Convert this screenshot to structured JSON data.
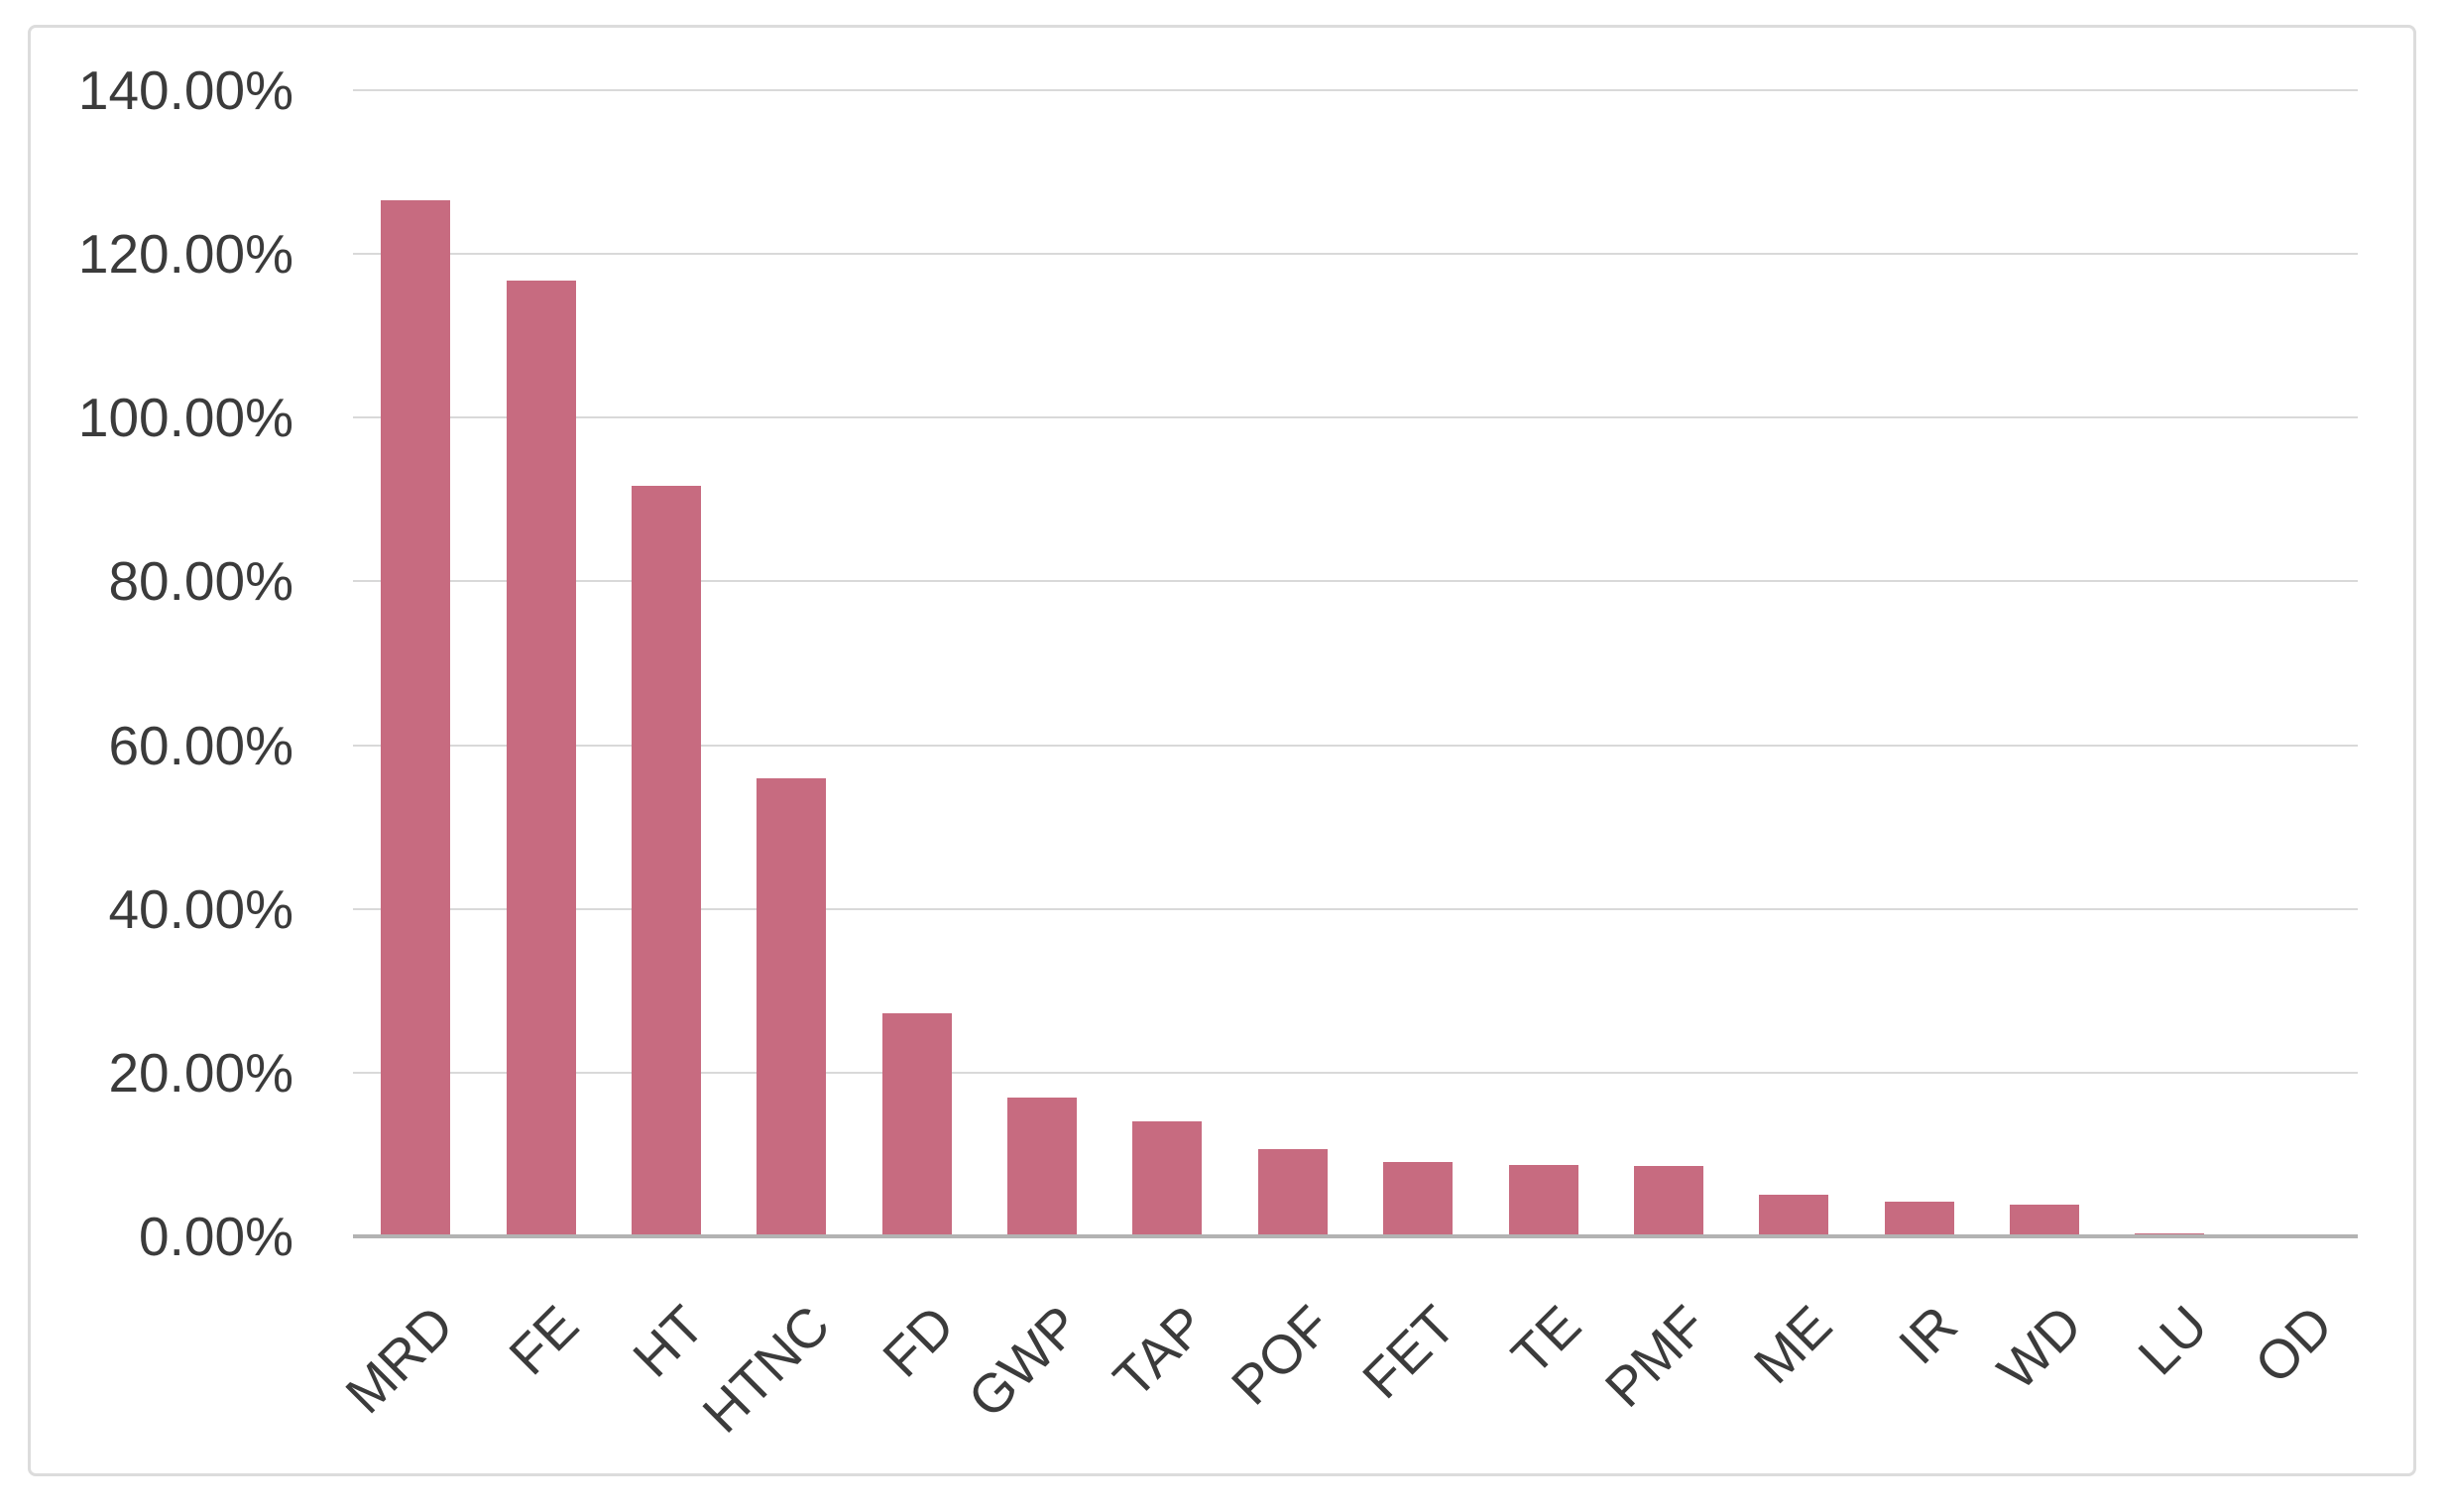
{
  "chart_data": {
    "type": "bar",
    "title": "",
    "xlabel": "",
    "ylabel": "",
    "legend": "none",
    "grid": "horizontal",
    "unit": "%",
    "categories": [
      "MRD",
      "FE",
      "HT",
      "HTNC",
      "FD",
      "GWP",
      "TAP",
      "POF",
      "FET",
      "TE",
      "PMF",
      "ME",
      "IR",
      "WD",
      "LU",
      "OD"
    ],
    "values": [
      126.6,
      116.8,
      91.7,
      56.0,
      27.2,
      16.9,
      14.0,
      10.6,
      9.1,
      8.7,
      8.6,
      5.1,
      4.2,
      3.9,
      0.4,
      0.0
    ],
    "ylim": [
      0,
      140
    ],
    "y_tick_values": [
      0,
      20,
      40,
      60,
      80,
      100,
      120,
      140
    ],
    "y_tick_labels": [
      "0.00%",
      "20.00%",
      "40.00%",
      "60.00%",
      "80.00%",
      "100.00%",
      "120.00%",
      "140.00%"
    ],
    "colors": {
      "bar_fill": "#c76b80",
      "gridline": "#d9d9d9",
      "axis_line": "#b3b3b3",
      "tick_label": "#3b3b3b",
      "frame_border": "#dcdcdc",
      "background": "#ffffff"
    }
  }
}
